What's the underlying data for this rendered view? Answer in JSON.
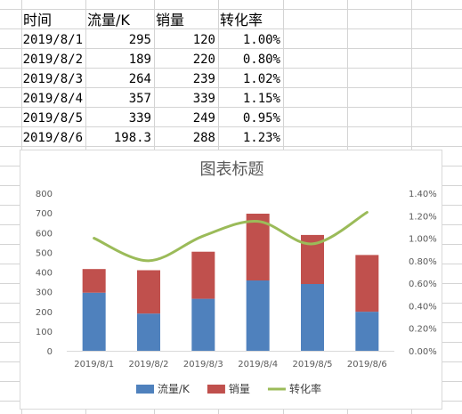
{
  "sheet": {
    "headers": [
      "时间",
      "流量/K",
      "销量",
      "转化率"
    ],
    "rows": [
      [
        "2019/8/1",
        "295",
        "120",
        "1.00%"
      ],
      [
        "2019/8/2",
        "189",
        "220",
        "0.80%"
      ],
      [
        "2019/8/3",
        "264",
        "239",
        "1.02%"
      ],
      [
        "2019/8/4",
        "357",
        "339",
        "1.15%"
      ],
      [
        "2019/8/5",
        "339",
        "249",
        "0.95%"
      ],
      [
        "2019/8/6",
        "198.3",
        "288",
        "1.23%"
      ]
    ]
  },
  "chart_data": {
    "type": "bar",
    "stacked": true,
    "title": "图表标题",
    "categories": [
      "2019/8/1",
      "2019/8/2",
      "2019/8/3",
      "2019/8/4",
      "2019/8/5",
      "2019/8/6"
    ],
    "series": [
      {
        "name": "流量/K",
        "type": "bar",
        "axis": "left",
        "color": "#4f81bd",
        "values": [
          295,
          189,
          264,
          357,
          339,
          198.3
        ]
      },
      {
        "name": "销量",
        "type": "bar",
        "axis": "left",
        "color": "#c0504d",
        "values": [
          120,
          220,
          239,
          339,
          249,
          288
        ]
      },
      {
        "name": "转化率",
        "type": "line",
        "smooth": true,
        "axis": "right",
        "color": "#9bbb59",
        "values": [
          1.0,
          0.8,
          1.02,
          1.15,
          0.95,
          1.23
        ]
      }
    ],
    "ylim": [
      0,
      800
    ],
    "yticks": [
      "0",
      "100",
      "200",
      "300",
      "400",
      "500",
      "600",
      "700",
      "800"
    ],
    "y2lim": [
      0,
      1.4
    ],
    "y2ticks": [
      "0.00%",
      "0.20%",
      "0.40%",
      "0.60%",
      "0.80%",
      "1.00%",
      "1.20%",
      "1.40%"
    ],
    "grid": false,
    "legend": "bottom"
  },
  "colors": {
    "sheet_grid": "#d4d4d4",
    "chart_border": "#d9d9d9",
    "title": "#595959"
  }
}
